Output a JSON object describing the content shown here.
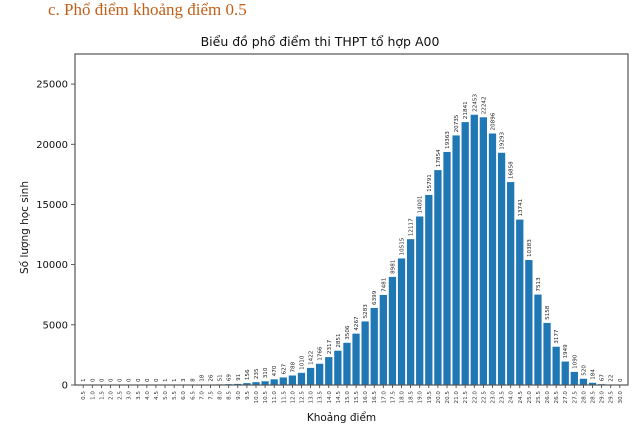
{
  "heading": "c.  Phổ điểm khoảng điểm 0.5",
  "colors": {
    "bar": "#1f77b4",
    "axis": "#555555",
    "heading": "#c0601a"
  },
  "chart_data": {
    "type": "bar",
    "title": "Biểu đồ phổ điểm thi THPT tổ hợp A00",
    "xlabel": "Khoảng điểm",
    "ylabel": "Số lượng học sinh",
    "ylim": [
      0,
      27500
    ],
    "yticks": [
      0,
      5000,
      10000,
      15000,
      20000,
      25000
    ],
    "grid": false,
    "legend": null,
    "categories": [
      "0.5",
      "1.0",
      "1.5",
      "2.0",
      "2.5",
      "3.0",
      "3.5",
      "4.0",
      "4.5",
      "5.0",
      "5.5",
      "6.0",
      "6.5",
      "7.0",
      "7.5",
      "8.0",
      "8.5",
      "9.0",
      "9.5",
      "10.0",
      "10.5",
      "11.0",
      "11.5",
      "12.0",
      "12.5",
      "13.0",
      "13.5",
      "14.0",
      "14.5",
      "15.0",
      "15.5",
      "16.0",
      "16.5",
      "17.0",
      "17.5",
      "18.0",
      "18.5",
      "19.0",
      "19.5",
      "20.0",
      "20.5",
      "21.0",
      "21.5",
      "22.0",
      "22.5",
      "23.0",
      "23.5",
      "24.0",
      "24.5",
      "25.0",
      "25.5",
      "26.0",
      "26.5",
      "27.0",
      "27.5",
      "28.0",
      "28.5",
      "29.0",
      "29.5",
      "30.0"
    ],
    "values": [
      1,
      0,
      0,
      0,
      0,
      0,
      0,
      0,
      0,
      1,
      1,
      3,
      8,
      18,
      26,
      51,
      69,
      91,
      156,
      235,
      310,
      470,
      627,
      788,
      1010,
      1422,
      1766,
      2317,
      2851,
      3506,
      4267,
      5283,
      6399,
      7481,
      8981,
      10515,
      12117,
      14001,
      15791,
      17854,
      19363,
      20735,
      21841,
      22453,
      22242,
      20896,
      19293,
      16858,
      13741,
      10383,
      7513,
      5158,
      3177,
      1949,
      1090,
      520,
      184,
      67,
      22,
      0
    ]
  }
}
